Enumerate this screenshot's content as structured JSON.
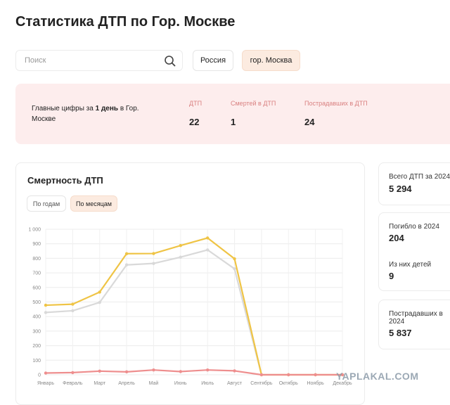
{
  "header": {
    "title": "Статистика ДТП по Гор. Москве"
  },
  "search": {
    "placeholder": "Поиск"
  },
  "filters": [
    "Россия",
    "гор. Москва"
  ],
  "summary": {
    "lead_before": "Главные цифры за",
    "lead_bold": "1 день",
    "lead_after": "в Гор. Москве",
    "metrics": [
      {
        "label": "ДТП",
        "value": 22
      },
      {
        "label": "Смертей в ДТП",
        "value": 1
      },
      {
        "label": "Пострадавших в ДТП",
        "value": 24
      }
    ]
  },
  "chart_card": {
    "title": "Смертность ДТП",
    "toggles": [
      "По годам",
      "По месяцам"
    ]
  },
  "chart_data": {
    "type": "line",
    "categories": [
      "Январь",
      "Февраль",
      "Март",
      "Апрель",
      "Май",
      "Июнь",
      "Июль",
      "Август",
      "Сентябрь",
      "Октябрь",
      "Ноябрь",
      "Декабрь"
    ],
    "series": [
      {
        "color": "#d9d9d9",
        "values": [
          428,
          440,
          497,
          755,
          765,
          808,
          858,
          728,
          0,
          0,
          0,
          0
        ]
      },
      {
        "color": "#efc445",
        "values": [
          478,
          485,
          568,
          832,
          833,
          888,
          940,
          797,
          0,
          0,
          0,
          0
        ]
      },
      {
        "color": "#ee8e8e",
        "values": [
          12,
          15,
          25,
          20,
          33,
          22,
          33,
          27,
          0,
          0,
          0,
          0
        ]
      }
    ],
    "ylim": [
      0,
      1000
    ],
    "yticks": [
      0,
      100,
      200,
      300,
      400,
      500,
      600,
      700,
      800,
      900,
      {
        "value": 1000,
        "label": "1 000"
      }
    ],
    "grid": true
  },
  "side_stats": [
    {
      "label": "Всего ДТП за 2024",
      "value": "5 294"
    },
    {
      "label": "Погибло в 2024",
      "value": "204"
    },
    {
      "label": "Из них детей",
      "value": "9"
    },
    {
      "label": "Пострадавших в 2024",
      "value": "5 837"
    }
  ],
  "watermark": "YAPLAKAL.COM"
}
